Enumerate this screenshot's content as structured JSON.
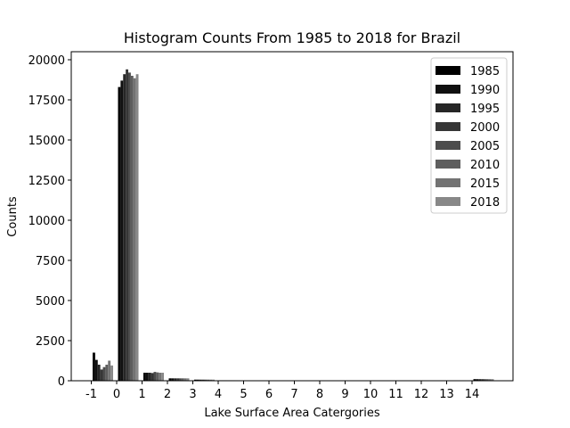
{
  "chart_data": {
    "type": "bar",
    "title": "Histogram Counts From 1985 to 2018 for Brazil",
    "xlabel": "Lake Surface Area Catergories",
    "ylabel": "Counts",
    "categories": [
      "-1",
      "0",
      "1",
      "2",
      "3",
      "4",
      "5",
      "6",
      "7",
      "8",
      "9",
      "10",
      "11",
      "12",
      "13",
      "14"
    ],
    "ylim": [
      0,
      20500
    ],
    "yticks": [
      0,
      2500,
      5000,
      7500,
      10000,
      12500,
      15000,
      17500,
      20000
    ],
    "legend_position": "top-right",
    "grid": false,
    "series": [
      {
        "name": "1985",
        "color": "#000000",
        "values": [
          1750,
          18300,
          500,
          150,
          70,
          30,
          20,
          0,
          0,
          0,
          0,
          0,
          0,
          0,
          0,
          100
        ]
      },
      {
        "name": "1990",
        "color": "#101010",
        "values": [
          1300,
          18700,
          500,
          150,
          70,
          30,
          20,
          0,
          0,
          0,
          0,
          0,
          0,
          0,
          0,
          100
        ]
      },
      {
        "name": "1995",
        "color": "#262626",
        "values": [
          1000,
          19100,
          500,
          150,
          70,
          30,
          20,
          0,
          0,
          0,
          0,
          0,
          0,
          0,
          0,
          100
        ]
      },
      {
        "name": "2000",
        "color": "#363636",
        "values": [
          700,
          19400,
          480,
          150,
          70,
          30,
          20,
          0,
          0,
          0,
          0,
          0,
          0,
          0,
          0,
          100
        ]
      },
      {
        "name": "2005",
        "color": "#4c4c4c",
        "values": [
          850,
          19200,
          550,
          150,
          70,
          30,
          20,
          0,
          0,
          0,
          0,
          0,
          0,
          0,
          0,
          100
        ]
      },
      {
        "name": "2010",
        "color": "#5e5e5e",
        "values": [
          1000,
          19000,
          520,
          150,
          70,
          30,
          20,
          0,
          0,
          0,
          0,
          0,
          0,
          0,
          0,
          100
        ]
      },
      {
        "name": "2015",
        "color": "#737373",
        "values": [
          1250,
          18850,
          500,
          150,
          70,
          30,
          20,
          0,
          0,
          0,
          0,
          0,
          0,
          0,
          0,
          100
        ]
      },
      {
        "name": "2018",
        "color": "#888888",
        "values": [
          950,
          19100,
          500,
          150,
          70,
          30,
          20,
          0,
          0,
          0,
          0,
          0,
          0,
          0,
          0,
          100
        ]
      }
    ]
  }
}
